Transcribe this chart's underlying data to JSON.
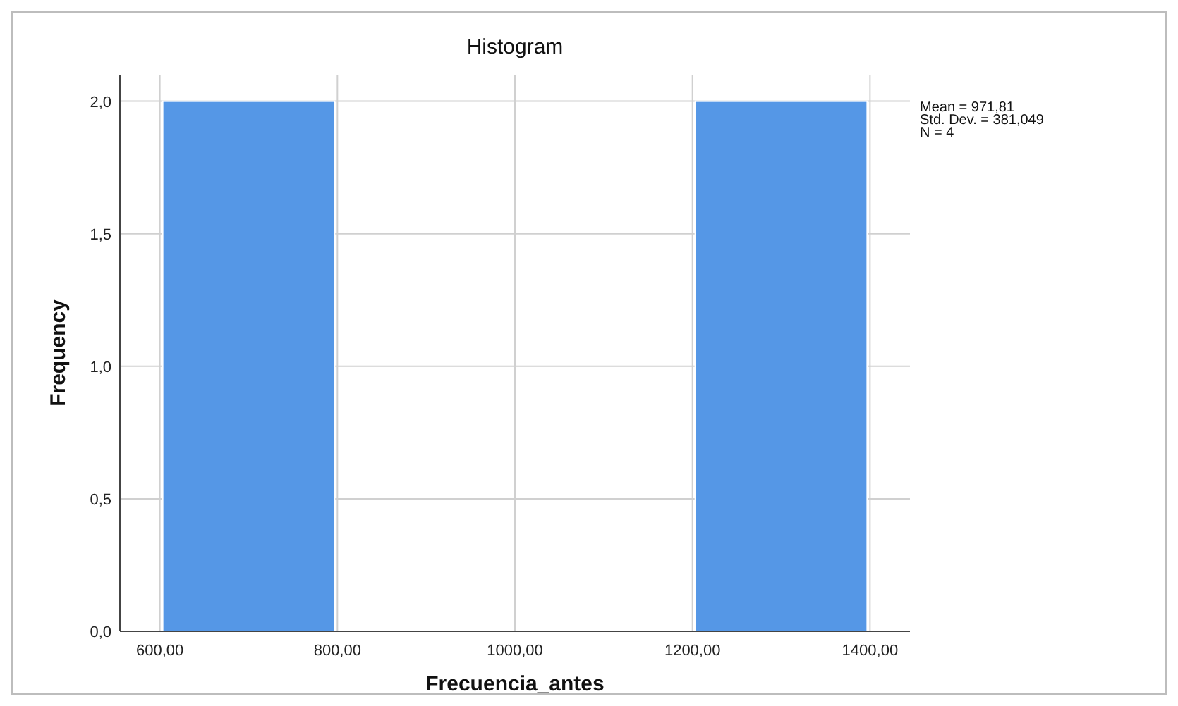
{
  "chart_data": {
    "type": "histogram",
    "title": "Histogram",
    "xlabel": "Frecuencia_antes",
    "ylabel": "Frequency",
    "bins": [
      600,
      800,
      1000,
      1200,
      1400
    ],
    "values": [
      2,
      0,
      0,
      2
    ],
    "color": "#5597e6",
    "xlim": [
      555,
      1445
    ],
    "xticks": [
      {
        "value": 600,
        "label": "600,00"
      },
      {
        "value": 800,
        "label": "800,00"
      },
      {
        "value": 1000,
        "label": "1000,00"
      },
      {
        "value": 1200,
        "label": "1200,00"
      },
      {
        "value": 1400,
        "label": "1400,00"
      }
    ],
    "ylim": [
      0,
      2.1
    ],
    "yticks": [
      {
        "value": 0,
        "label": "0,0"
      },
      {
        "value": 0.5,
        "label": "0,5"
      },
      {
        "value": 1,
        "label": "1,0"
      },
      {
        "value": 1.5,
        "label": "1,5"
      },
      {
        "value": 2,
        "label": "2,0"
      }
    ],
    "grid": true,
    "annotations": [
      "Mean = 971,81",
      "Std. Dev. = 381,049",
      "N = 4"
    ]
  }
}
